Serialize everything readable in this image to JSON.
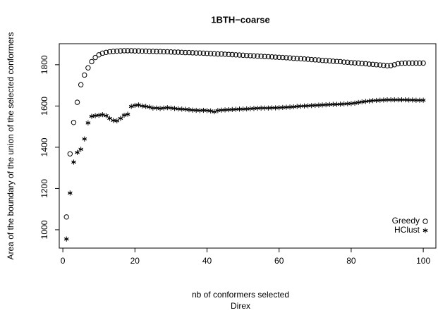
{
  "chart_data": {
    "type": "scatter",
    "title": "1BTH−coarse",
    "x_label": "nb of conformers selected",
    "subtitle": "Direx",
    "y_label": "Area of the boundary of the union of the selected conformers",
    "x": [
      1,
      2,
      3,
      4,
      5,
      6,
      7,
      8,
      9,
      10,
      11,
      12,
      13,
      14,
      15,
      16,
      17,
      18,
      19,
      20,
      21,
      22,
      23,
      24,
      25,
      26,
      27,
      28,
      29,
      30,
      31,
      32,
      33,
      34,
      35,
      36,
      37,
      38,
      39,
      40,
      41,
      42,
      43,
      44,
      45,
      46,
      47,
      48,
      49,
      50,
      51,
      52,
      53,
      54,
      55,
      56,
      57,
      58,
      59,
      60,
      61,
      62,
      63,
      64,
      65,
      66,
      67,
      68,
      69,
      70,
      71,
      72,
      73,
      74,
      75,
      76,
      77,
      78,
      79,
      80,
      81,
      82,
      83,
      84,
      85,
      86,
      87,
      88,
      89,
      90,
      91,
      92,
      93,
      94,
      95,
      96,
      97,
      98,
      99,
      100
    ],
    "series": [
      {
        "name": "Greedy",
        "marker": "circle",
        "color": "#000000",
        "values": [
          1062,
          1368,
          1520,
          1618,
          1703,
          1750,
          1785,
          1815,
          1835,
          1848,
          1856,
          1860,
          1863,
          1865,
          1866,
          1867,
          1868,
          1868,
          1868,
          1867,
          1867,
          1866,
          1866,
          1865,
          1865,
          1864,
          1864,
          1863,
          1863,
          1862,
          1861,
          1861,
          1860,
          1859,
          1859,
          1858,
          1857,
          1857,
          1856,
          1855,
          1854,
          1853,
          1852,
          1852,
          1851,
          1850,
          1849,
          1848,
          1847,
          1846,
          1845,
          1844,
          1843,
          1842,
          1841,
          1840,
          1839,
          1838,
          1837,
          1836,
          1835,
          1834,
          1833,
          1831,
          1830,
          1829,
          1828,
          1827,
          1825,
          1824,
          1823,
          1821,
          1820,
          1819,
          1817,
          1816,
          1815,
          1813,
          1812,
          1810,
          1809,
          1808,
          1806,
          1805,
          1803,
          1802,
          1800,
          1799,
          1797,
          1795,
          1796,
          1800,
          1805,
          1807,
          1808,
          1808,
          1808,
          1808,
          1808,
          1808
        ]
      },
      {
        "name": "HClust",
        "marker": "asterisk",
        "color": "#000000",
        "values": [
          955,
          1178,
          1328,
          1375,
          1390,
          1440,
          1518,
          1550,
          1553,
          1555,
          1558,
          1553,
          1540,
          1530,
          1528,
          1540,
          1555,
          1560,
          1598,
          1603,
          1605,
          1600,
          1598,
          1595,
          1590,
          1590,
          1588,
          1590,
          1592,
          1590,
          1588,
          1586,
          1585,
          1584,
          1582,
          1580,
          1579,
          1578,
          1579,
          1578,
          1576,
          1572,
          1578,
          1580,
          1581,
          1582,
          1583,
          1584,
          1585,
          1585,
          1586,
          1587,
          1588,
          1589,
          1590,
          1590,
          1590,
          1591,
          1591,
          1592,
          1593,
          1594,
          1595,
          1596,
          1598,
          1599,
          1600,
          1601,
          1602,
          1603,
          1604,
          1605,
          1606,
          1607,
          1608,
          1608,
          1609,
          1610,
          1611,
          1612,
          1614,
          1617,
          1620,
          1622,
          1624,
          1626,
          1627,
          1628,
          1629,
          1630,
          1630,
          1630,
          1630,
          1630,
          1630,
          1629,
          1629,
          1628,
          1628,
          1628
        ]
      }
    ],
    "xlim": [
      -1,
      103.5
    ],
    "ylim": [
      911,
      1902
    ],
    "xticks": [
      0,
      20,
      40,
      60,
      80,
      100
    ],
    "yticks": [
      1000,
      1200,
      1400,
      1600,
      1800
    ],
    "legend": "bottom-right"
  }
}
